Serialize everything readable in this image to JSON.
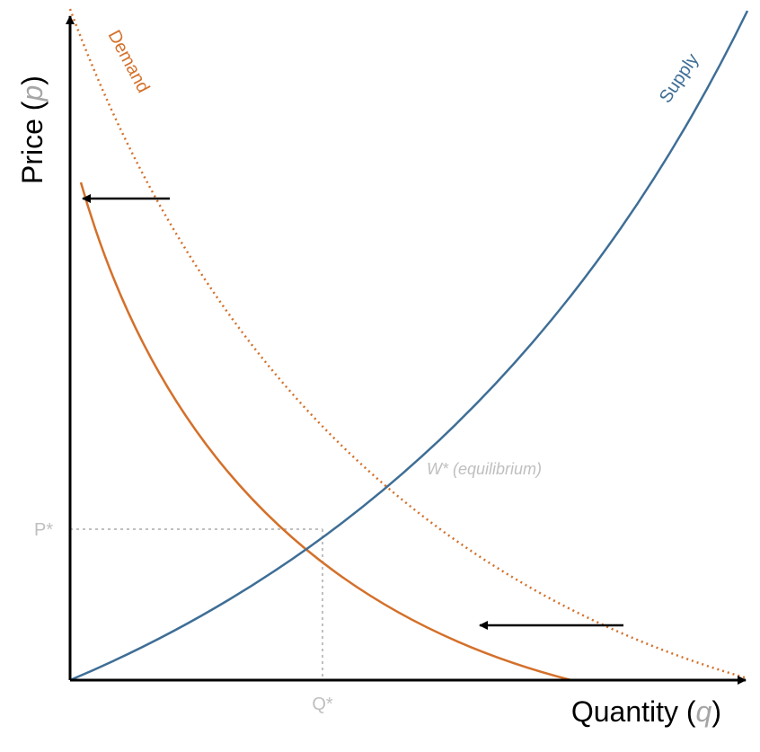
{
  "diagram": {
    "axes": {
      "y_title": "Price",
      "y_var": "p",
      "x_title": "Quantity",
      "x_var": "q"
    },
    "curves": {
      "supply": {
        "label": "Supply",
        "color": "#3e6e96"
      },
      "demand": {
        "label": "Demand",
        "color": "#d4702a"
      }
    },
    "markers": {
      "price_tick": "P*",
      "quantity_tick": "Q*",
      "equilibrium": "W* (equilibrium)"
    },
    "arrows": [
      {
        "name": "demand-shift-arrow-top",
        "direction": "left"
      },
      {
        "name": "demand-shift-arrow-bottom",
        "direction": "left"
      }
    ]
  }
}
